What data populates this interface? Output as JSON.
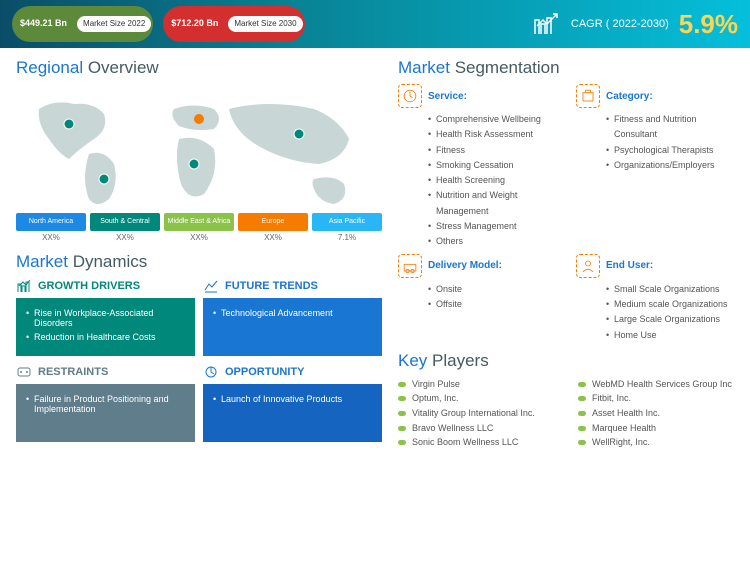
{
  "header": {
    "size2022": {
      "value": "$449.21\nBn",
      "label": "Market\nSize 2022",
      "bg": "#5c8a3a"
    },
    "size2030": {
      "value": "$712.20\nBn",
      "label": "Market\nSize 2030",
      "bg": "#d32f2f"
    },
    "cagr_label": "CAGR ( 2022-2030)",
    "cagr_value": "5.9%"
  },
  "regional": {
    "title_a": "Regional ",
    "title_b": "Overview",
    "regions": [
      {
        "name": "North America",
        "val": "XX%",
        "color": "#1e88e5"
      },
      {
        "name": "South & Central",
        "val": "XX%",
        "color": "#00897b"
      },
      {
        "name": "Middle East & Africa",
        "val": "XX%",
        "color": "#8bc34a"
      },
      {
        "name": "Europe",
        "val": "XX%",
        "color": "#f57c00"
      },
      {
        "name": "Asia Pacific",
        "val": "7.1%",
        "color": "#29b6f6"
      }
    ]
  },
  "dynamics": {
    "title_a": "Market ",
    "title_b": "Dynamics",
    "boxes": [
      {
        "title": "GROWTH DRIVERS",
        "color": "c-teal",
        "bg": "bg-teal",
        "items": [
          "Rise in Workplace-Associated Disorders",
          "Reduction in Healthcare Costs"
        ]
      },
      {
        "title": "FUTURE TRENDS",
        "color": "c-blue",
        "bg": "bg-blue",
        "items": [
          "Technological Advancement"
        ]
      },
      {
        "title": "RESTRAINTS",
        "color": "c-gray",
        "bg": "bg-gray",
        "items": [
          "Failure in Product Positioning and Implementation"
        ]
      },
      {
        "title": "OPPORTUNITY",
        "color": "c-blue",
        "bg": "bg-navy",
        "items": [
          "Launch of Innovative Products"
        ]
      }
    ]
  },
  "segmentation": {
    "title_a": "Market ",
    "title_b": "Segmentation",
    "cols": [
      {
        "title": "Service:",
        "items": [
          "Comprehensive Wellbeing",
          "Health Risk Assessment",
          "Fitness",
          "Smoking Cessation",
          "Health Screening",
          "Nutrition and Weight Management",
          "Stress Management",
          "Others"
        ]
      },
      {
        "title": "Category:",
        "items": [
          "Fitness and Nutrition Consultant",
          "Psychological Therapists",
          "Organizations/Employers"
        ]
      },
      {
        "title": "Delivery Model:",
        "items": [
          "Onsite",
          "Offsite"
        ]
      },
      {
        "title": "End User:",
        "items": [
          "Small Scale Organizations",
          "Medium scale Organizations",
          "Large Scale Organizations",
          "Home Use"
        ]
      }
    ]
  },
  "key": {
    "title_a": "Key ",
    "title_b": "Players",
    "left": [
      "Virgin Pulse",
      "Optum, Inc.",
      "Vitality Group International Inc.",
      "Bravo Wellness LLC",
      "Sonic Boom Wellness LLC"
    ],
    "right": [
      "WebMD Health Services Group Inc",
      "Fitbit, Inc.",
      "Asset Health Inc.",
      "Marquee Health",
      "WellRight, Inc."
    ]
  }
}
